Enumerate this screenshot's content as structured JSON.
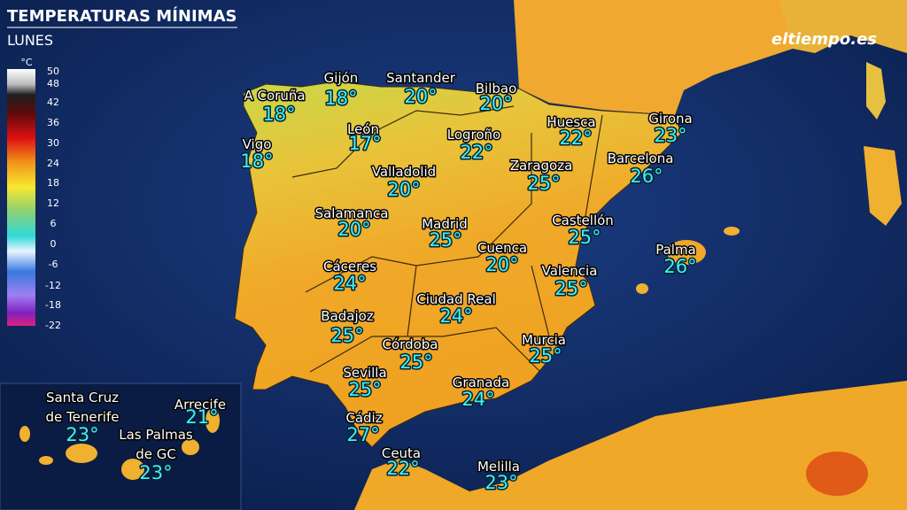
{
  "header": {
    "title": "TEMPERATURAS MÍNIMAS",
    "subtitle": "LUNES",
    "logo": "eltiempo.es"
  },
  "legend": {
    "unit": "°C",
    "labels": [
      50,
      48,
      42,
      36,
      30,
      24,
      18,
      12,
      6,
      0,
      -6,
      -12,
      -18,
      -22
    ]
  },
  "cities": [
    {
      "name": [
        "A Coruña"
      ],
      "temp": "18°"
    },
    {
      "name": [
        "Gijón"
      ],
      "temp": "18°"
    },
    {
      "name": [
        "Santander"
      ],
      "temp": "20°"
    },
    {
      "name": [
        "Bilbao"
      ],
      "temp": "20°"
    },
    {
      "name": [
        "Vigo"
      ],
      "temp": "18°"
    },
    {
      "name": [
        "León"
      ],
      "temp": "17°"
    },
    {
      "name": [
        "Logroño"
      ],
      "temp": "22°"
    },
    {
      "name": [
        "Huesca"
      ],
      "temp": "22°"
    },
    {
      "name": [
        "Girona"
      ],
      "temp": "23°"
    },
    {
      "name": [
        "Valladolid"
      ],
      "temp": "20°"
    },
    {
      "name": [
        "Zaragoza"
      ],
      "temp": "25°"
    },
    {
      "name": [
        "Barcelona"
      ],
      "temp": "26°"
    },
    {
      "name": [
        "Salamanca"
      ],
      "temp": "20°"
    },
    {
      "name": [
        "Madrid"
      ],
      "temp": "25°"
    },
    {
      "name": [
        "Castellón"
      ],
      "temp": "25°"
    },
    {
      "name": [
        "Cuenca"
      ],
      "temp": "20°"
    },
    {
      "name": [
        "Palma"
      ],
      "temp": "26°"
    },
    {
      "name": [
        "Cáceres"
      ],
      "temp": "24°"
    },
    {
      "name": [
        "Valencia"
      ],
      "temp": "25°"
    },
    {
      "name": [
        "Ciudad Real"
      ],
      "temp": "24°"
    },
    {
      "name": [
        "Badajoz"
      ],
      "temp": "25°"
    },
    {
      "name": [
        "Murcia"
      ],
      "temp": "25°"
    },
    {
      "name": [
        "Córdoba"
      ],
      "temp": "25°"
    },
    {
      "name": [
        "Sevilla"
      ],
      "temp": "25°"
    },
    {
      "name": [
        "Granada"
      ],
      "temp": "24°"
    },
    {
      "name": [
        "Cádiz"
      ],
      "temp": "27°"
    },
    {
      "name": [
        "Ceuta"
      ],
      "temp": "22°"
    },
    {
      "name": [
        "Melilla"
      ],
      "temp": "23°"
    },
    {
      "name": [
        "Santa Cruz",
        "de Tenerife"
      ],
      "temp": "23°"
    },
    {
      "name": [
        "Arrecife"
      ],
      "temp": "21°"
    },
    {
      "name": [
        "Las Palmas",
        "de GC"
      ],
      "temp": "23°"
    }
  ]
}
